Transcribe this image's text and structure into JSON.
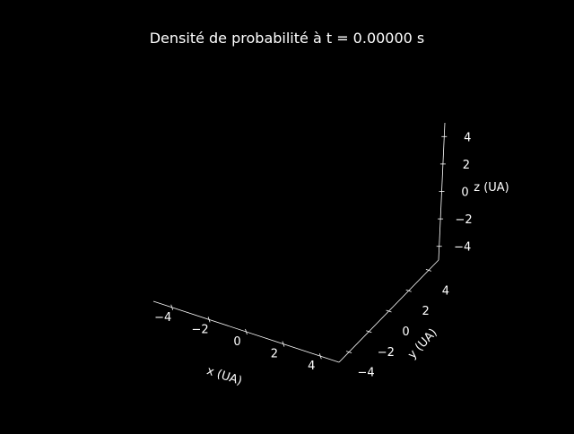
{
  "chart_data": {
    "type": "scatter",
    "projection": "3d",
    "title": "Densité de probabilité à t = 0.00000 s",
    "xlabel": "x (UA)",
    "ylabel": "y (UA)",
    "zlabel": "z (UA)",
    "xlim": [
      -5,
      5
    ],
    "ylim": [
      -5,
      5
    ],
    "zlim": [
      -5,
      5
    ],
    "xticks": [
      "−4",
      "−2",
      "0",
      "2",
      "4"
    ],
    "yticks": [
      "−4",
      "−2",
      "0",
      "2",
      "4"
    ],
    "zticks": [
      "−4",
      "−2",
      "0",
      "2",
      "4"
    ],
    "background": "#000000",
    "axis_color": "#ffffff",
    "grid": false,
    "points": []
  }
}
